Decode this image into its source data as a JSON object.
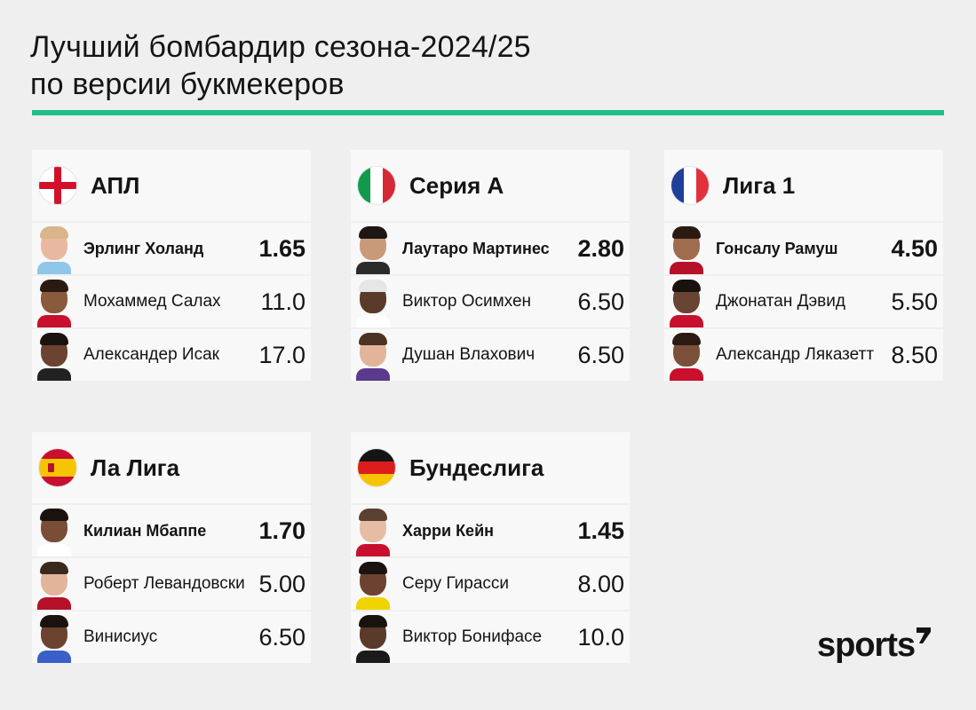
{
  "title": {
    "line1": "Лучший бомбардир сезона-2024/25",
    "line2": "по версии букмекеров"
  },
  "colors": {
    "accent": "#1fbf83",
    "card": "#f8f8f8",
    "background": "#efefef"
  },
  "leagues": [
    {
      "name": "АПЛ",
      "flag_icon": "england-flag-icon",
      "players": [
        {
          "name": "Эрлинг Холанд",
          "odds": "1.65"
        },
        {
          "name": "Мохаммед Салах",
          "odds": "11.0"
        },
        {
          "name": "Александер Исак",
          "odds": "17.0"
        }
      ]
    },
    {
      "name": "Серия А",
      "flag_icon": "italy-flag-icon",
      "players": [
        {
          "name": "Лаутаро Мартинес",
          "odds": "2.80"
        },
        {
          "name": "Виктор Осимхен",
          "odds": "6.50"
        },
        {
          "name": "Душан Влахович",
          "odds": "6.50"
        }
      ]
    },
    {
      "name": "Лига 1",
      "flag_icon": "france-flag-icon",
      "players": [
        {
          "name": "Гонсалу Рамуш",
          "odds": "4.50"
        },
        {
          "name": "Джонатан Дэвид",
          "odds": "5.50"
        },
        {
          "name": "Александр Ляказетт",
          "odds": "8.50"
        }
      ]
    },
    {
      "name": "Ла Лига",
      "flag_icon": "spain-flag-icon",
      "players": [
        {
          "name": "Килиан Мбаппе",
          "odds": "1.70"
        },
        {
          "name": "Роберт Левандовски",
          "odds": "5.00"
        },
        {
          "name": "Винисиус",
          "odds": "6.50"
        }
      ]
    },
    {
      "name": "Бундеслига",
      "flag_icon": "germany-flag-icon",
      "players": [
        {
          "name": "Харри Кейн",
          "odds": "1.45"
        },
        {
          "name": "Серу Гирасси",
          "odds": "8.00"
        },
        {
          "name": "Виктор Бонифасе",
          "odds": "10.0"
        }
      ]
    }
  ],
  "logo": {
    "text": "sports"
  }
}
